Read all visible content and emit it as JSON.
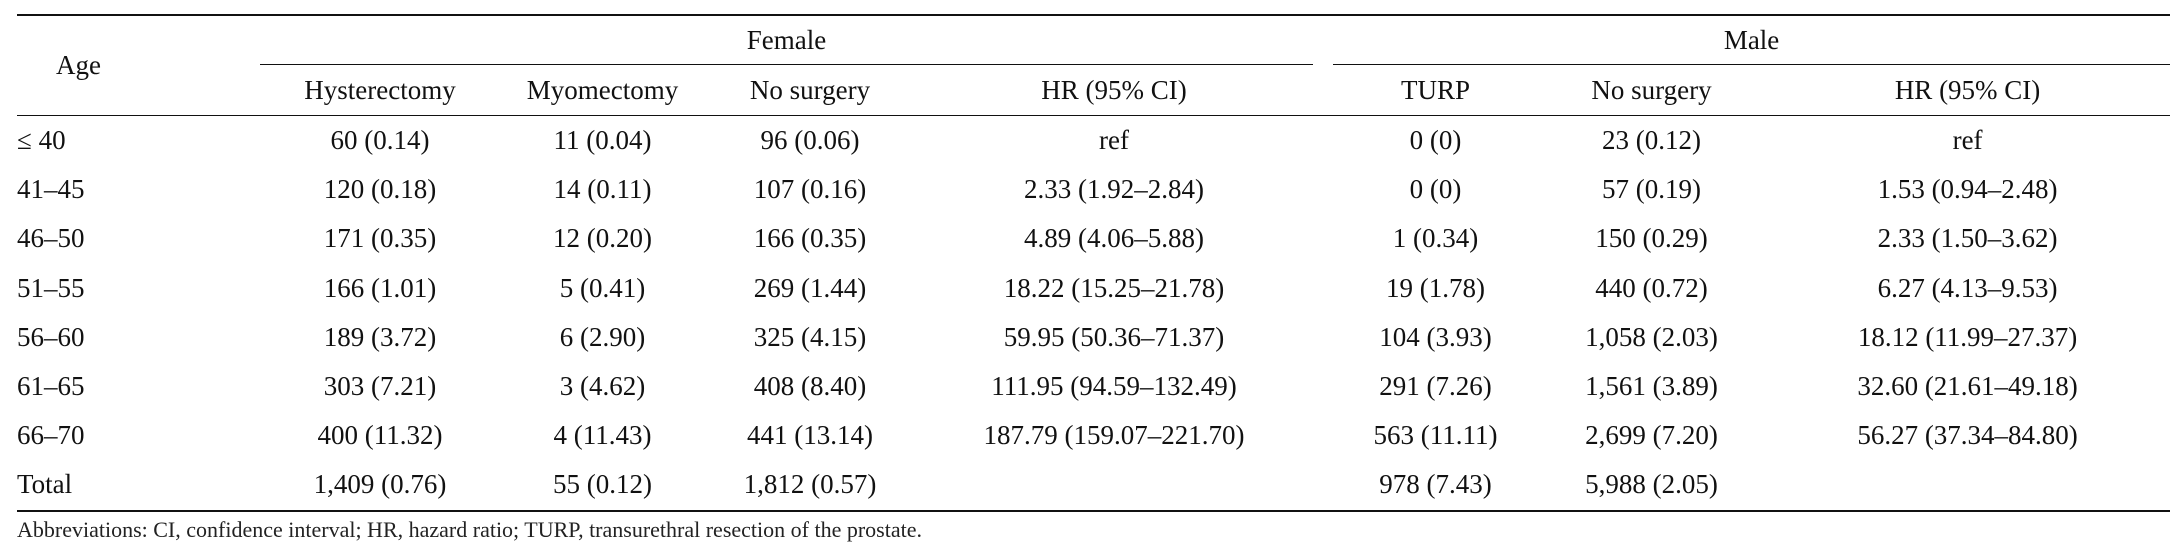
{
  "table": {
    "header": {
      "age": "Age",
      "female": "Female",
      "male": "Male",
      "female_cols": [
        "Hysterectomy",
        "Myomectomy",
        "No surgery",
        "HR (95% CI)"
      ],
      "male_cols": [
        "TURP",
        "No surgery",
        "HR (95% CI)"
      ]
    },
    "rows": [
      {
        "age": "≤ 40",
        "hyst": "60 (0.14)",
        "myom": "11 (0.04)",
        "f_nosurg": "96 (0.06)",
        "f_hr": "ref",
        "turp": "0 (0)",
        "m_nosurg": "23 (0.12)",
        "m_hr": "ref"
      },
      {
        "age": "41–45",
        "hyst": "120 (0.18)",
        "myom": "14 (0.11)",
        "f_nosurg": "107 (0.16)",
        "f_hr": "2.33 (1.92–2.84)",
        "turp": "0 (0)",
        "m_nosurg": "57 (0.19)",
        "m_hr": "1.53 (0.94–2.48)"
      },
      {
        "age": "46–50",
        "hyst": "171 (0.35)",
        "myom": "12 (0.20)",
        "f_nosurg": "166 (0.35)",
        "f_hr": "4.89 (4.06–5.88)",
        "turp": "1 (0.34)",
        "m_nosurg": "150 (0.29)",
        "m_hr": "2.33 (1.50–3.62)"
      },
      {
        "age": "51–55",
        "hyst": "166 (1.01)",
        "myom": "5 (0.41)",
        "f_nosurg": "269 (1.44)",
        "f_hr": "18.22 (15.25–21.78)",
        "turp": "19 (1.78)",
        "m_nosurg": "440 (0.72)",
        "m_hr": "6.27 (4.13–9.53)"
      },
      {
        "age": "56–60",
        "hyst": "189 (3.72)",
        "myom": "6 (2.90)",
        "f_nosurg": "325 (4.15)",
        "f_hr": "59.95 (50.36–71.37)",
        "turp": "104 (3.93)",
        "m_nosurg": "1,058 (2.03)",
        "m_hr": "18.12 (11.99–27.37)"
      },
      {
        "age": "61–65",
        "hyst": "303 (7.21)",
        "myom": "3 (4.62)",
        "f_nosurg": "408 (8.40)",
        "f_hr": "111.95 (94.59–132.49)",
        "turp": "291 (7.26)",
        "m_nosurg": "1,561 (3.89)",
        "m_hr": "32.60 (21.61–49.18)"
      },
      {
        "age": "66–70",
        "hyst": "400 (11.32)",
        "myom": "4 (11.43)",
        "f_nosurg": "441 (13.14)",
        "f_hr": "187.79 (159.07–221.70)",
        "turp": "563 (11.11)",
        "m_nosurg": "2,699 (7.20)",
        "m_hr": "56.27 (37.34–84.80)"
      },
      {
        "age": "Total",
        "hyst": "1,409 (0.76)",
        "myom": "55 (0.12)",
        "f_nosurg": "1,812 (0.57)",
        "f_hr": "",
        "turp": "978 (7.43)",
        "m_nosurg": "5,988 (2.05)",
        "m_hr": ""
      }
    ]
  },
  "footnote": "Abbreviations: CI, confidence interval; HR, hazard ratio; TURP, transurethral resection of the prostate."
}
